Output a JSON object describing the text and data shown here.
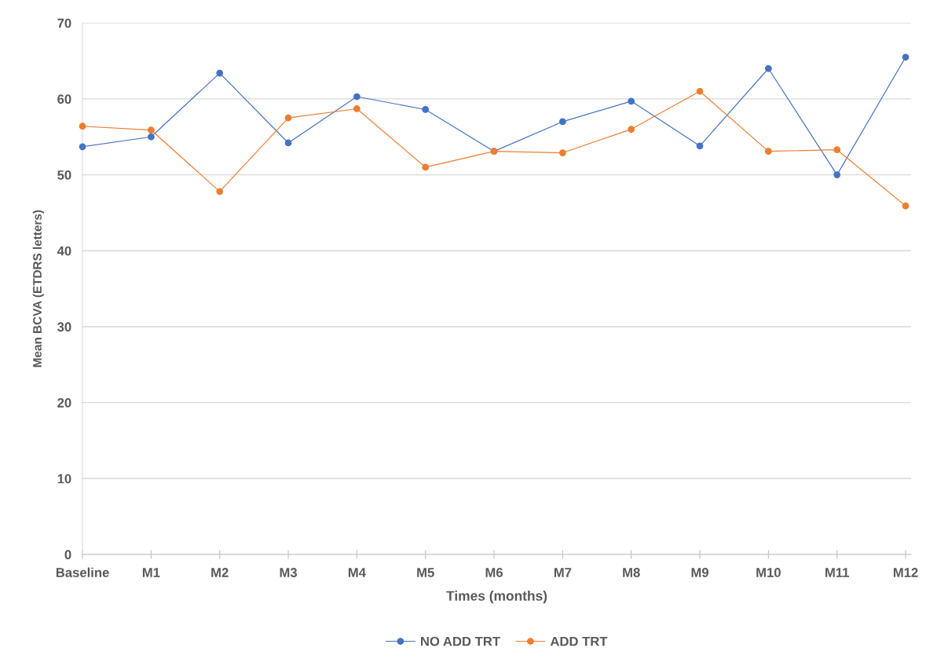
{
  "chart_data": {
    "type": "line",
    "xlabel": "Times (months)",
    "ylabel": "Mean BCVA (ETDRS letters)",
    "categories": [
      "Baseline",
      "M1",
      "M2",
      "M3",
      "M4",
      "M5",
      "M6",
      "M7",
      "M8",
      "M9",
      "M10",
      "M11",
      "M12"
    ],
    "series": [
      {
        "name": "NO ADD TRT",
        "color": "#4472c4",
        "values": [
          53.7,
          55.0,
          63.4,
          54.2,
          60.3,
          58.6,
          53.1,
          57.0,
          59.7,
          53.8,
          64.0,
          50.0,
          65.5
        ]
      },
      {
        "name": "ADD TRT",
        "color": "#ed7d31",
        "values": [
          56.4,
          55.9,
          47.8,
          57.5,
          58.7,
          51.0,
          53.1,
          52.9,
          56.0,
          61.0,
          53.1,
          53.3,
          45.9
        ]
      }
    ],
    "ylim": [
      0,
      70
    ],
    "yticks": [
      0,
      10,
      20,
      30,
      40,
      50,
      60,
      70
    ],
    "grid": "y",
    "legend": "bottom",
    "marker": "circle",
    "line_style": "solid"
  }
}
